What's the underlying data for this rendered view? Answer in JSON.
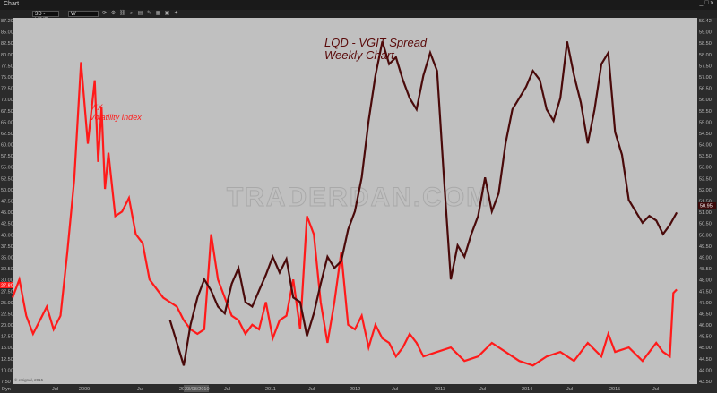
{
  "window": {
    "title": "Chart",
    "buttons": [
      "_",
      "□",
      "x"
    ]
  },
  "toolbar": {
    "symbol": "3D - VGIT",
    "interval": "W"
  },
  "chart_data": {
    "type": "line",
    "title": "LQD - VGIT Spread",
    "subtitle": "Weekly Chart",
    "annotation_vix": [
      "VIX",
      "Volatility Index"
    ],
    "watermark": "TRADERDAN.COM",
    "footer": "© eSignal, 2015",
    "left_axis": {
      "labels": [
        "87.20",
        "85.00",
        "82.50",
        "80.00",
        "77.50",
        "75.00",
        "72.50",
        "70.00",
        "67.50",
        "65.00",
        "62.50",
        "60.00",
        "57.50",
        "55.00",
        "52.50",
        "50.00",
        "47.50",
        "45.00",
        "42.50",
        "40.00",
        "37.50",
        "35.00",
        "32.50",
        "30.00",
        "27.50",
        "25.00",
        "22.50",
        "20.00",
        "17.50",
        "15.00",
        "12.50",
        "10.00",
        "7.50"
      ],
      "ylim": [
        7.5,
        87.2
      ],
      "current": "27.80"
    },
    "right_axis": {
      "labels": [
        "59.42",
        "59.00",
        "58.50",
        "58.00",
        "57.50",
        "57.00",
        "56.50",
        "56.00",
        "55.50",
        "55.00",
        "54.50",
        "54.00",
        "53.50",
        "53.00",
        "52.50",
        "52.00",
        "51.50",
        "51.00",
        "50.50",
        "50.00",
        "49.50",
        "49.00",
        "48.50",
        "48.00",
        "47.50",
        "47.00",
        "46.50",
        "46.00",
        "45.50",
        "45.00",
        "44.50",
        "44.00",
        "43.50"
      ],
      "ylim": [
        43.5,
        59.42
      ],
      "current": "50.95"
    },
    "x_labels": [
      "Dyn",
      "Jul",
      "2009",
      "Jul",
      "2010",
      "Jul",
      "2011",
      "Jul",
      "2012",
      "Jul",
      "2013",
      "Jul",
      "2014",
      "Jul",
      "2015",
      "Jul"
    ],
    "x_highlight": "23/08/2010",
    "series": [
      {
        "name": "VIX",
        "color": "#ff1a1a",
        "axis": "left",
        "x": [
          0.0,
          0.01,
          0.02,
          0.03,
          0.04,
          0.05,
          0.06,
          0.07,
          0.08,
          0.09,
          0.1,
          0.11,
          0.12,
          0.125,
          0.13,
          0.135,
          0.14,
          0.15,
          0.16,
          0.17,
          0.18,
          0.19,
          0.2,
          0.21,
          0.22,
          0.23,
          0.24,
          0.25,
          0.26,
          0.27,
          0.28,
          0.29,
          0.3,
          0.31,
          0.32,
          0.33,
          0.34,
          0.35,
          0.36,
          0.37,
          0.38,
          0.39,
          0.4,
          0.41,
          0.42,
          0.43,
          0.44,
          0.45,
          0.46,
          0.47,
          0.48,
          0.49,
          0.5,
          0.51,
          0.52,
          0.53,
          0.54,
          0.55,
          0.56,
          0.57,
          0.58,
          0.59,
          0.6,
          0.62,
          0.64,
          0.66,
          0.68,
          0.7,
          0.72,
          0.74,
          0.76,
          0.78,
          0.8,
          0.82,
          0.84,
          0.86,
          0.87,
          0.88,
          0.9,
          0.92,
          0.94,
          0.95,
          0.96,
          0.965,
          0.97
        ],
        "values": [
          26,
          30,
          22,
          18,
          21,
          24,
          19,
          22,
          36,
          52,
          78,
          60,
          74,
          56,
          68,
          50,
          58,
          44,
          45,
          48,
          40,
          38,
          30,
          28,
          26,
          25,
          24,
          21,
          19,
          18,
          19,
          40,
          30,
          26,
          22,
          21,
          18,
          20,
          19,
          25,
          17,
          21,
          22,
          30,
          19,
          44,
          40,
          25,
          16,
          25,
          36,
          20,
          19,
          22,
          15,
          20,
          17,
          16,
          13,
          15,
          18,
          16,
          13,
          14,
          15,
          12,
          13,
          16,
          14,
          12,
          11,
          13,
          14,
          12,
          16,
          13,
          18,
          14,
          15,
          12,
          16,
          14,
          13,
          27,
          27.8
        ]
      },
      {
        "name": "LQD - VGIT",
        "color": "#4a0a0a",
        "axis": "right",
        "x": [
          0.23,
          0.24,
          0.25,
          0.26,
          0.27,
          0.28,
          0.29,
          0.3,
          0.31,
          0.32,
          0.33,
          0.34,
          0.35,
          0.36,
          0.37,
          0.38,
          0.39,
          0.4,
          0.41,
          0.42,
          0.43,
          0.44,
          0.45,
          0.46,
          0.47,
          0.48,
          0.49,
          0.5,
          0.51,
          0.52,
          0.53,
          0.54,
          0.55,
          0.56,
          0.57,
          0.58,
          0.59,
          0.6,
          0.61,
          0.62,
          0.63,
          0.64,
          0.65,
          0.66,
          0.67,
          0.68,
          0.69,
          0.7,
          0.71,
          0.72,
          0.73,
          0.74,
          0.75,
          0.76,
          0.77,
          0.78,
          0.79,
          0.8,
          0.81,
          0.82,
          0.83,
          0.84,
          0.85,
          0.86,
          0.87,
          0.88,
          0.89,
          0.9,
          0.91,
          0.92,
          0.93,
          0.94,
          0.95,
          0.96,
          0.97
        ],
        "values": [
          46.2,
          45.2,
          44.2,
          46.0,
          47.2,
          48.0,
          47.5,
          46.8,
          46.5,
          47.8,
          48.5,
          47.0,
          46.8,
          47.5,
          48.2,
          49.0,
          48.3,
          48.9,
          47.2,
          47.0,
          45.5,
          46.5,
          47.8,
          49.0,
          48.5,
          48.8,
          50.2,
          51.0,
          52.5,
          55.0,
          57.0,
          58.5,
          57.5,
          57.8,
          56.8,
          56.0,
          55.5,
          57.0,
          58.0,
          57.2,
          52.5,
          48.0,
          49.5,
          49.0,
          50.0,
          50.8,
          52.5,
          51.0,
          51.8,
          54.0,
          55.5,
          56.0,
          56.5,
          57.2,
          56.8,
          55.5,
          55.0,
          56.0,
          58.5,
          57.0,
          55.8,
          54.0,
          55.5,
          57.5,
          58.0,
          54.5,
          53.5,
          51.5,
          51.0,
          50.5,
          50.8,
          50.6,
          50.0,
          50.4,
          50.95
        ]
      }
    ]
  }
}
